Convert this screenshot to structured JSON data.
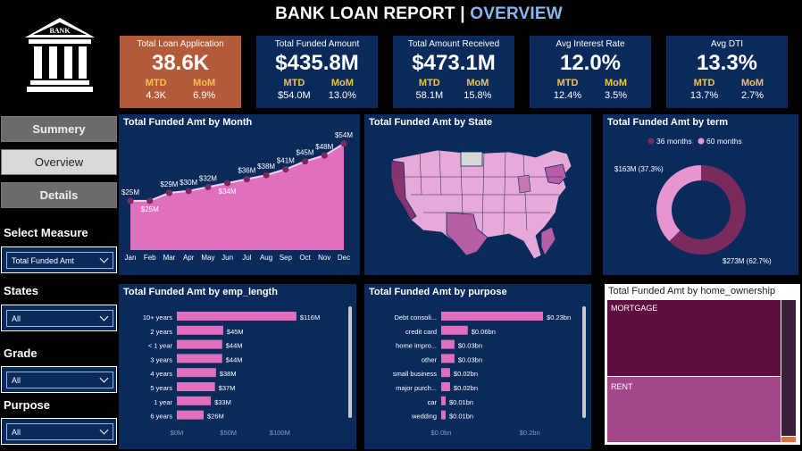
{
  "header": {
    "title_main": "BANK LOAN REPORT | ",
    "title_accent": "OVERVIEW"
  },
  "logo": {
    "text": "BANK"
  },
  "kpis": [
    {
      "title": "Total Loan Application",
      "value": "38.6K",
      "mtd_label": "MTD",
      "mom_label": "MoM",
      "mtd": "4.3K",
      "mom": "6.9%"
    },
    {
      "title": "Total Funded Amount",
      "value": "$435.8M",
      "mtd_label": "MTD",
      "mom_label": "MoM",
      "mtd": "$54.0M",
      "mom": "13.0%"
    },
    {
      "title": "Total  Amount Received",
      "value": "$473.1M",
      "mtd_label": "MTD",
      "mom_label": "MoM",
      "mtd": "58.1M",
      "mom": "15.8%"
    },
    {
      "title": "Avg Interest Rate",
      "value": "12.0%",
      "mtd_label": "MTD",
      "mom_label": "MoM",
      "mtd": "12.4%",
      "mom": "3.5%"
    },
    {
      "title": "Avg DTI",
      "value": "13.3%",
      "mtd_label": "MTD",
      "mom_label": "MoM",
      "mtd": "13.7%",
      "mom": "2.7%"
    }
  ],
  "nav": {
    "summery": "Summery",
    "overview": "Overview",
    "details": "Details"
  },
  "filters": {
    "measure_label": "Select Measure",
    "measure_value": "Total Funded Amt",
    "states_label": "States",
    "states_value": "All",
    "grade_label": "Grade",
    "grade_value": "All",
    "purpose_label": "Purpose",
    "purpose_value": "All"
  },
  "panels": {
    "month_title": "Total Funded Amt by Month",
    "state_title": "Total Funded Amt by State",
    "term_title": "Total Funded Amt by term",
    "emp_title": "Total Funded Amt by emp_length",
    "purpose_title": "Total Funded Amt by purpose",
    "home_title": "Total Funded Amt by home_ownership"
  },
  "colors": {
    "pink": "#e06fbe",
    "plum": "#7a2a5c",
    "navy": "#0a2a5c",
    "lightpink": "#f0b3dd",
    "mortgage": "#5e0f40",
    "rent": "#a3478a"
  },
  "chart_data": [
    {
      "type": "area",
      "title": "Total Funded Amt by Month",
      "categories": [
        "Jan",
        "Feb",
        "Mar",
        "Apr",
        "May",
        "Jun",
        "Jul",
        "Aug",
        "Sep",
        "Oct",
        "Nov",
        "Dec"
      ],
      "values": [
        25,
        25,
        29,
        30,
        32,
        34,
        36,
        38,
        41,
        45,
        48,
        54
      ],
      "data_labels": [
        "$25M",
        "$25M",
        "$29M",
        "$30M",
        "$32M",
        "$34M",
        "$36M",
        "$38M",
        "$41M",
        "$45M",
        "$48M",
        "$54M"
      ],
      "ylim": [
        0,
        58
      ]
    },
    {
      "type": "pie",
      "title": "Total Funded Amt by term",
      "series": [
        {
          "name": "36 months",
          "value": 273,
          "label": "$273M (62.7%)",
          "color": "#7a2a5c"
        },
        {
          "name": "60 months",
          "value": 163,
          "label": "$163M (37.3%)",
          "color": "#e894cf"
        }
      ]
    },
    {
      "type": "bar",
      "title": "Total Funded Amt by emp_length",
      "categories": [
        "10+ years",
        "2 years",
        "< 1 year",
        "3 years",
        "4 years",
        "5 years",
        "1 year",
        "6 years"
      ],
      "values": [
        116,
        45,
        44,
        44,
        38,
        37,
        33,
        26
      ],
      "data_labels": [
        "$116M",
        "$45M",
        "$44M",
        "$44M",
        "$38M",
        "$37M",
        "$33M",
        "$26M"
      ],
      "xticks": [
        "$0M",
        "$50M",
        "$100M"
      ],
      "xlim": [
        0,
        130
      ]
    },
    {
      "type": "bar",
      "title": "Total Funded Amt by purpose",
      "categories": [
        "Debt consoli...",
        "credit card",
        "home impro...",
        "other",
        "small business",
        "major purch...",
        "car",
        "wedding"
      ],
      "values": [
        0.23,
        0.06,
        0.03,
        0.03,
        0.02,
        0.02,
        0.01,
        0.01
      ],
      "data_labels": [
        "$0.23bn",
        "$0.06bn",
        "$0.03bn",
        "$0.03bn",
        "$0.02bn",
        "$0.02bn",
        "$0.01bn",
        "$0.01bn"
      ],
      "xticks": [
        "$0.0bn",
        "$0.2bn"
      ],
      "xlim": [
        0,
        0.24
      ]
    },
    {
      "type": "treemap",
      "title": "Total Funded Amt by home_ownership",
      "categories": [
        "MORTGAGE",
        "RENT"
      ]
    }
  ]
}
